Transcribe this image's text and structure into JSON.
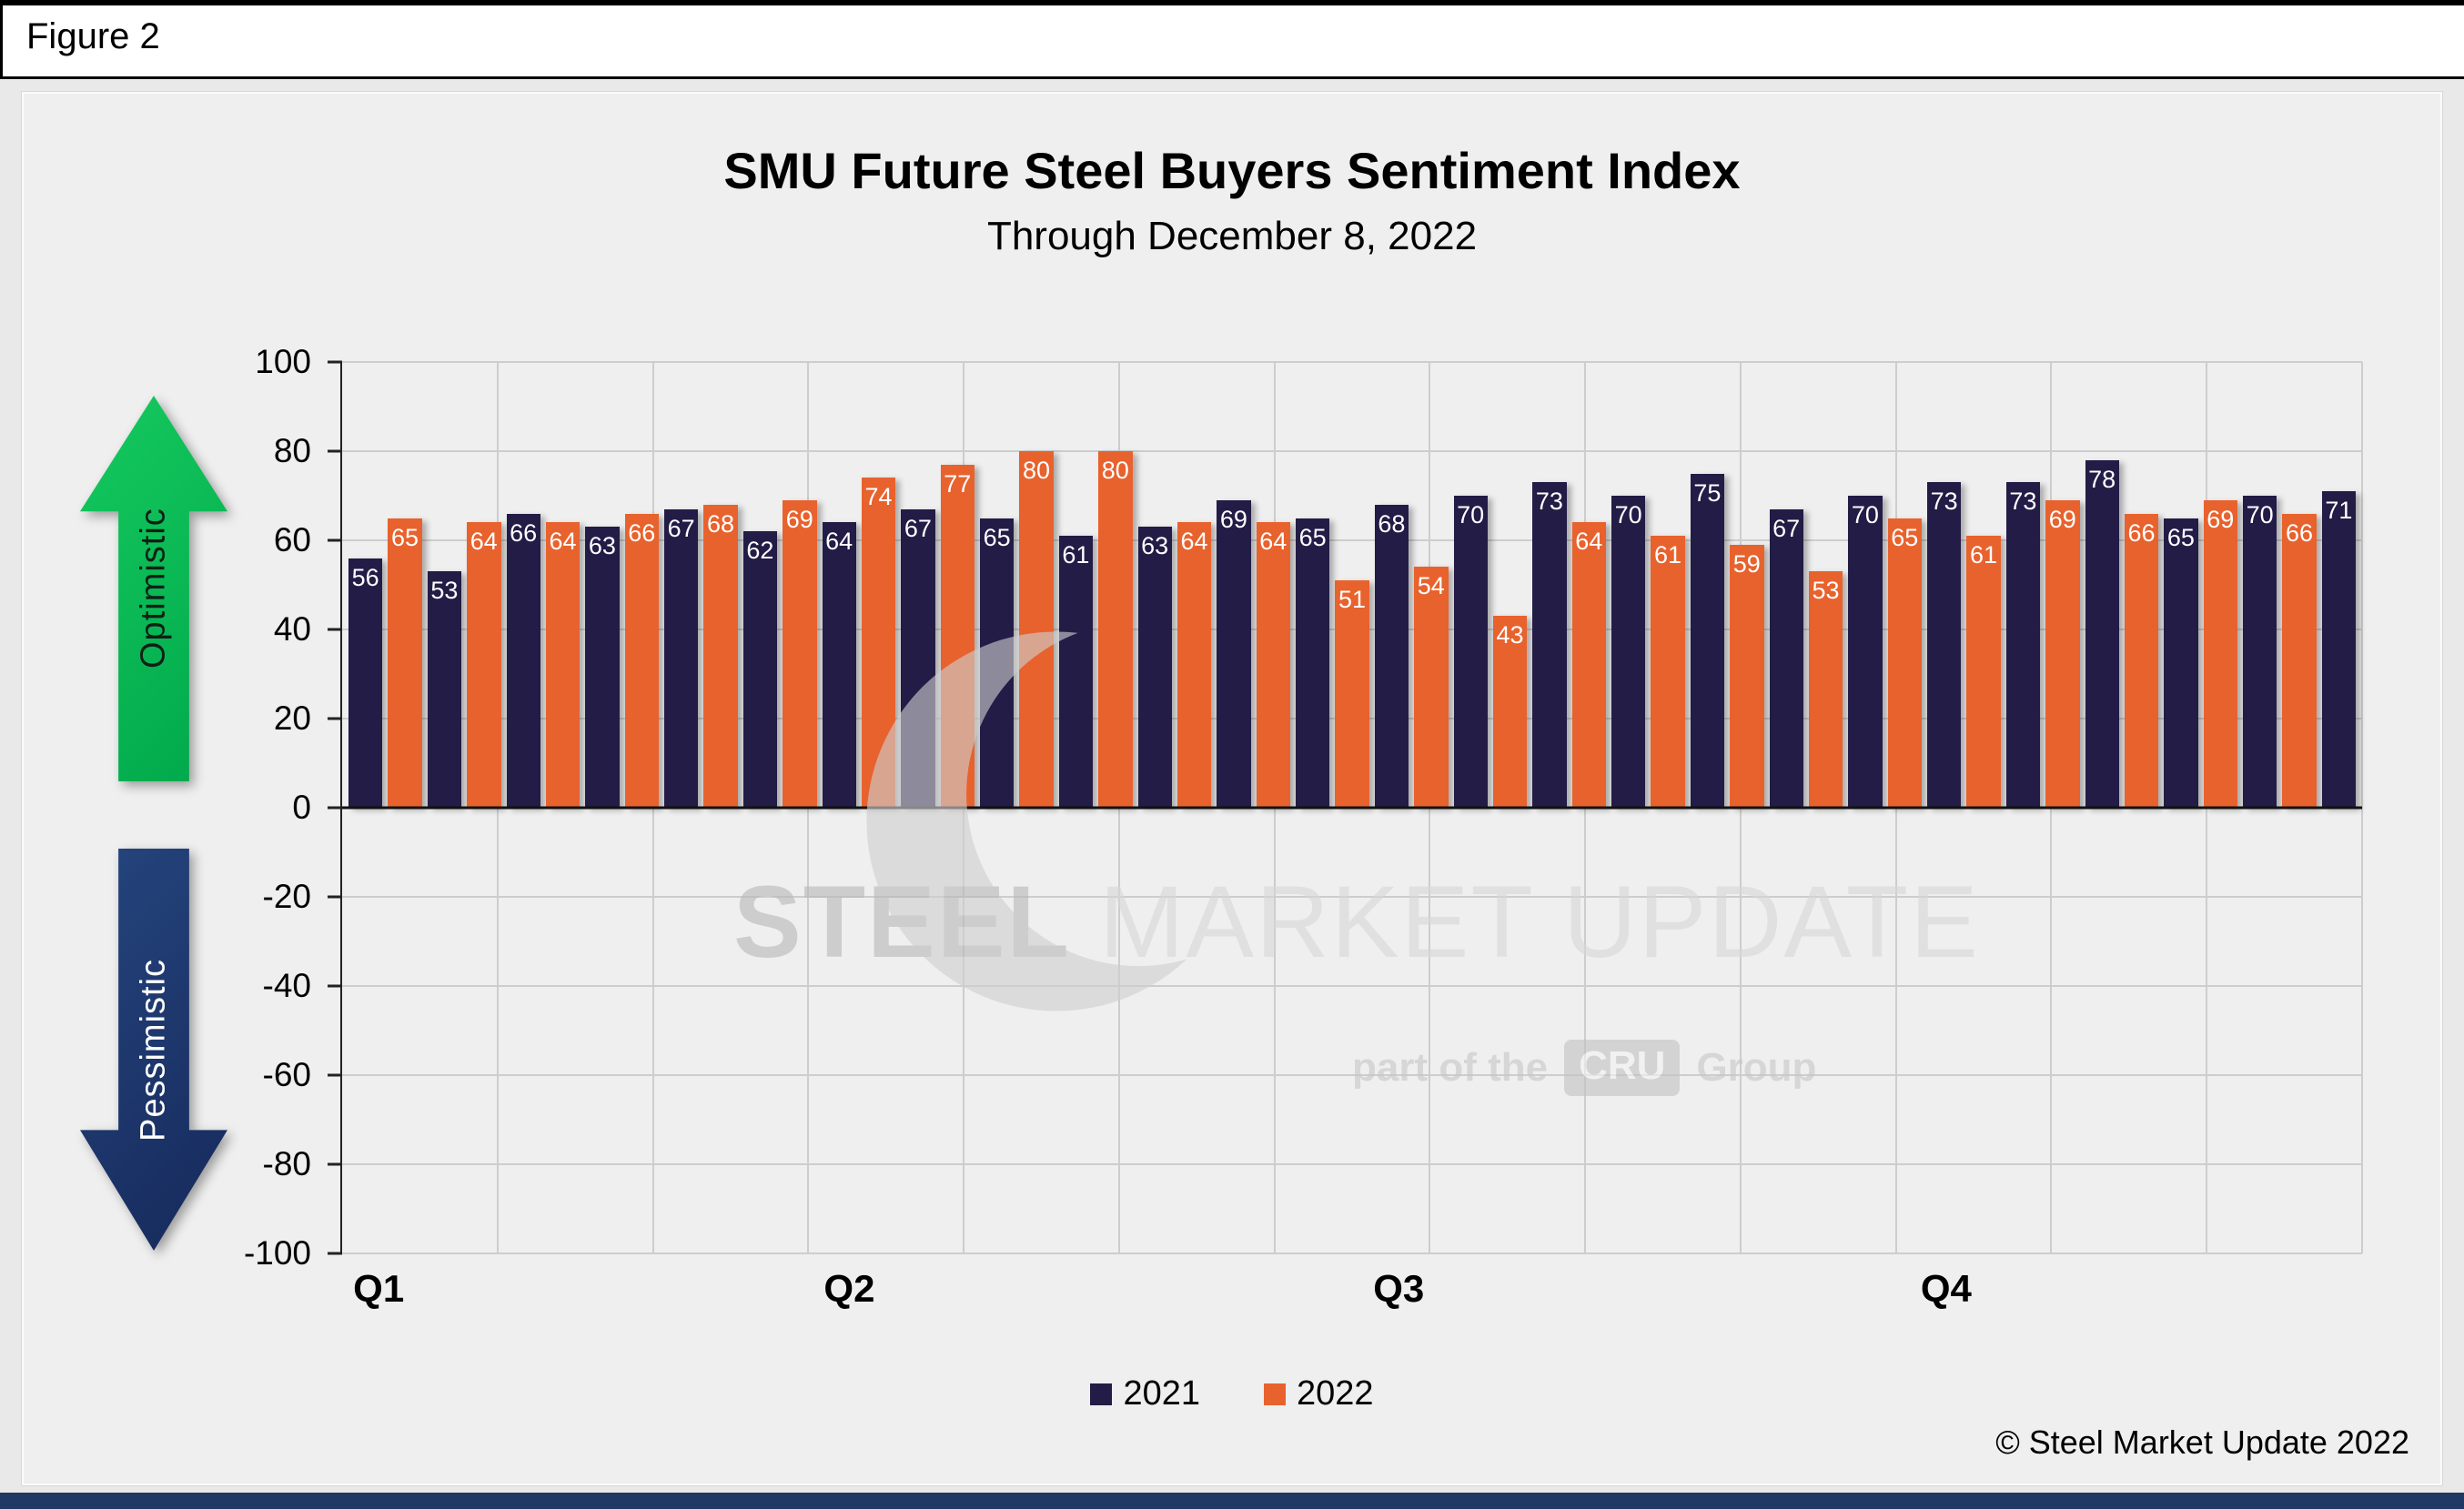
{
  "figure_label": "Figure 2",
  "header": {
    "title": "SMU Future Steel Buyers Sentiment Index",
    "subtitle": "Through December 8, 2022"
  },
  "arrows": {
    "optimistic": "Optimistic",
    "pessimistic": "Pessimistic"
  },
  "watermark": {
    "steel": "STEEL",
    "market_update": "MARKET UPDATE",
    "part_of_the": "part of the",
    "cru": "CRU",
    "group": "Group"
  },
  "legend": [
    {
      "label": "2021",
      "color": "#221C46"
    },
    {
      "label": "2022",
      "color": "#E8622D"
    }
  ],
  "footer": {
    "copyright": "© Steel Market Update 2022"
  },
  "chart_data": {
    "type": "bar",
    "title": "SMU Future Steel Buyers Sentiment Index",
    "subtitle": "Through December 8, 2022",
    "xlabel": "",
    "ylabel": "",
    "ylim": [
      -100,
      100
    ],
    "y_ticks": [
      100,
      80,
      60,
      40,
      20,
      0,
      -20,
      -40,
      -60,
      -80,
      -100
    ],
    "x_labels": [
      "Q1",
      "Q2",
      "Q3",
      "Q4"
    ],
    "grid": true,
    "legend_position": "bottom",
    "bars_interleaved_by_period": true,
    "series": [
      {
        "name": "2021",
        "color": "#221C46",
        "values": [
          56,
          53,
          66,
          63,
          67,
          62,
          64,
          67,
          65,
          61,
          63,
          69,
          65,
          68,
          70,
          73,
          70,
          75,
          67,
          70,
          73,
          73,
          78,
          65,
          70,
          71
        ]
      },
      {
        "name": "2022",
        "color": "#E8622D",
        "values": [
          65,
          64,
          64,
          66,
          68,
          69,
          74,
          77,
          80,
          80,
          64,
          64,
          51,
          54,
          43,
          64,
          61,
          59,
          53,
          65,
          61,
          69,
          66,
          69,
          66
        ]
      }
    ]
  }
}
